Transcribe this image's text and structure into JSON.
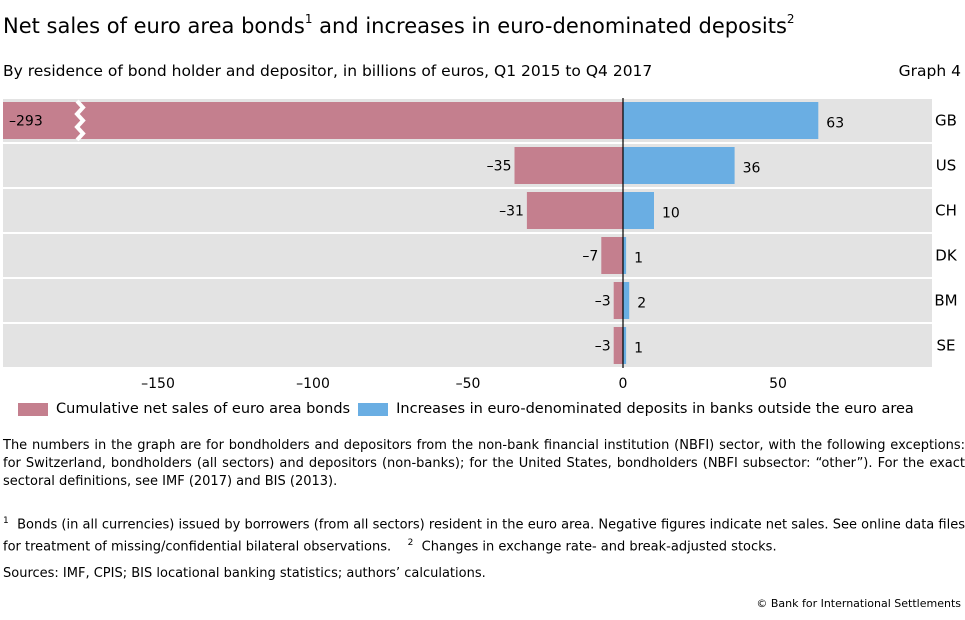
{
  "header": {
    "title": "Net sales of euro area bonds",
    "title_sup1": "1",
    "title_mid": " and increases in euro-denominated deposits",
    "title_sup2": "2",
    "subtitle": "By residence of bond holder and depositor, in billions of euros, Q1 2015 to Q4 2017",
    "graph_label": "Graph 4"
  },
  "chart_data": {
    "type": "bar",
    "orientation": "horizontal",
    "categories": [
      "GB",
      "US",
      "CH",
      "DK",
      "BM",
      "SE"
    ],
    "series": [
      {
        "name": "Cumulative net sales of euro area bonds",
        "values": [
          -293,
          -35,
          -31,
          -7,
          -3,
          -3
        ],
        "color": "#c47f8e"
      },
      {
        "name": "Increases in euro-denominated deposits in banks outside the euro area",
        "values": [
          63,
          36,
          10,
          1,
          2,
          1
        ],
        "color": "#6aaee3"
      }
    ],
    "value_labels_neg": [
      "–293",
      "–35",
      "–31",
      "–7",
      "–3",
      "–3"
    ],
    "value_labels_pos": [
      "63",
      "36",
      "10",
      "1",
      "2",
      "1"
    ],
    "xlim": [
      -200,
      100
    ],
    "xticks": [
      -150,
      -100,
      -50,
      0,
      50
    ],
    "xtick_labels": [
      "–150",
      "–100",
      "–50",
      "0",
      "50"
    ],
    "axis_break": {
      "series": 0,
      "category": "GB"
    },
    "background": "#e3e3e3",
    "legend_position": "bottom"
  },
  "legend": {
    "item1": "Cumulative net sales of euro area bonds",
    "item2": "Increases in euro-denominated deposits in banks outside the euro area"
  },
  "notes": {
    "main": "The numbers in the graph are for bondholders and depositors from the non-bank financial institution (NBFI) sector, with the following exceptions: for Switzerland, bondholders (all sectors) and depositors (non-banks); for the United States, bondholders (NBFI subsector: “other”). For the exact sectoral definitions, see IMF (2017) and BIS (2013).",
    "fn1_mark": "1",
    "fn1": "Bonds (in all currencies) issued by borrowers (from all sectors) resident in the euro area. Negative figures indicate net sales. See online data files for treatment of missing/confidential bilateral observations.",
    "fn2_mark": "2",
    "fn2": "Changes in exchange rate- and break-adjusted stocks.",
    "sources": "Sources: IMF, CPIS; BIS locational banking statistics; authors’ calculations.",
    "copyright": "© Bank for International Settlements"
  }
}
